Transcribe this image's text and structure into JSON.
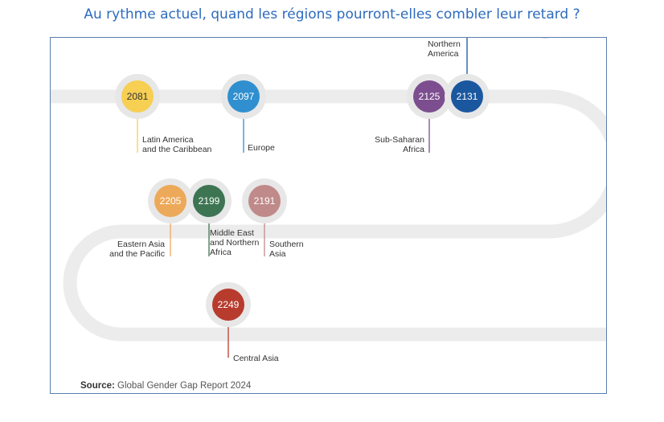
{
  "title": "Au rythme actuel, quand les régions pourront-elles combler leur retard ?",
  "source": {
    "prefix": "Source:",
    "text": "Global Gender Gap Report 2024"
  },
  "milestones": [
    {
      "year": "2081",
      "region": "Latin America\nand the Caribbean",
      "color": "#f6cf53"
    },
    {
      "year": "2097",
      "region": "Europe",
      "color": "#2f8fcf"
    },
    {
      "year": "2125",
      "region": "Sub-Saharan\nAfrica",
      "color": "#7c4e8f"
    },
    {
      "year": "2131",
      "region": "Northern\nAmerica",
      "color": "#1a579f"
    },
    {
      "year": "2205",
      "region": "Eastern Asia\nand the Pacific",
      "color": "#eda95a"
    },
    {
      "year": "2199",
      "region": "Middle East\nand Northern\nAfrica",
      "color": "#3d7552"
    },
    {
      "year": "2191",
      "region": "Southern\nAsia",
      "color": "#c08a8a"
    },
    {
      "year": "2249",
      "region": "Central Asia",
      "color": "#b73c2e"
    }
  ]
}
